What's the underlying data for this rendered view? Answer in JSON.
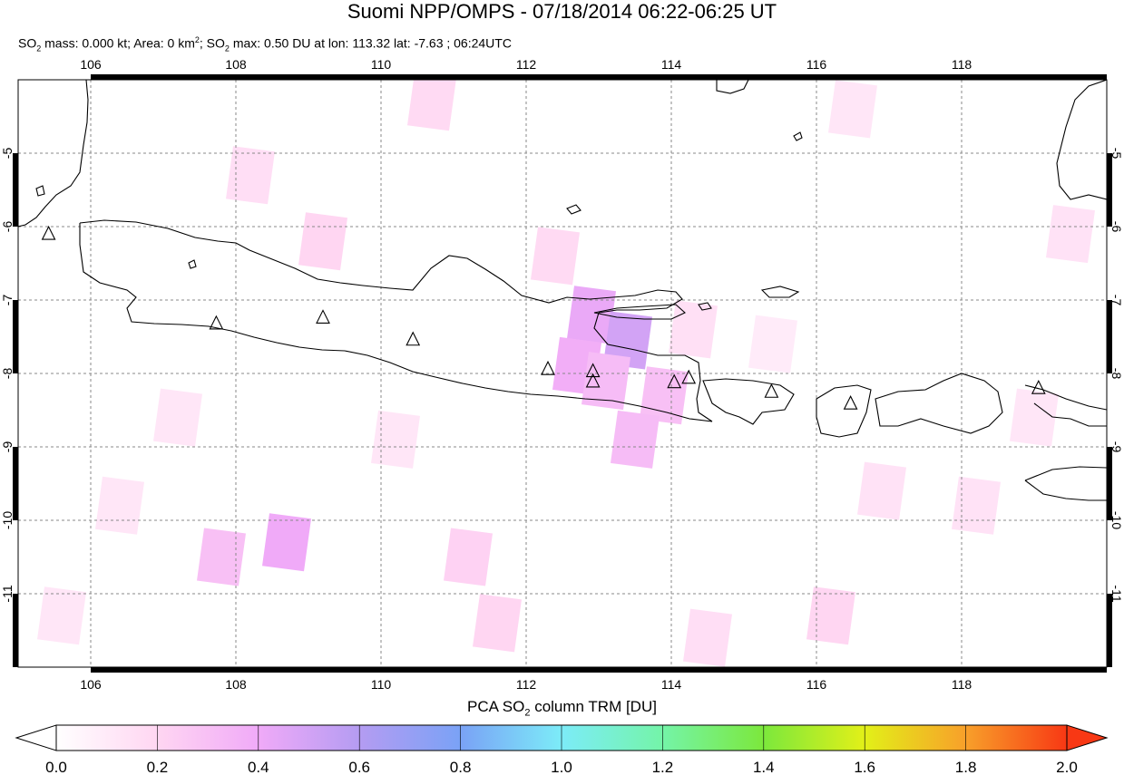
{
  "header": {
    "title": "Suomi NPP/OMPS - 07/18/2014 06:22-06:25 UT",
    "subtitle_parts": {
      "a": "SO",
      "a_sub": "2",
      "b": " mass: 0.000 kt; Area: 0 km",
      "b_sup": "2",
      "c": "; SO",
      "c_sub": "2",
      "d": " max: 0.50 DU at lon: 113.32 lat: -7.63 ; 06:24UTC"
    }
  },
  "colorbar": {
    "label_a": "PCA SO",
    "label_sub": "2",
    "label_b": " column TRM [DU]",
    "ticks": [
      "0.0",
      "0.2",
      "0.4",
      "0.6",
      "0.8",
      "1.0",
      "1.2",
      "1.4",
      "1.6",
      "1.8",
      "2.0"
    ],
    "colors": [
      "#ffffff",
      "#ffd6f2",
      "#f0aaf8",
      "#b49cf2",
      "#7aa2f6",
      "#7cecf8",
      "#74f4a8",
      "#7ce83c",
      "#e2f018",
      "#f8a02a",
      "#f83814"
    ]
  },
  "chart_data": {
    "type": "heatmap",
    "title": "Suomi NPP/OMPS - 07/18/2014 06:22-06:25 UT",
    "xlim": [
      105,
      120
    ],
    "ylim": [
      -12,
      -4
    ],
    "x_ticks": [
      "106",
      "108",
      "110",
      "112",
      "114",
      "116",
      "118"
    ],
    "y_ticks": [
      "-5",
      "-6",
      "-7",
      "-8",
      "-9",
      "-10",
      "-11"
    ],
    "x_tick_values": [
      106,
      108,
      110,
      112,
      114,
      116,
      118
    ],
    "y_tick_values": [
      -5,
      -6,
      -7,
      -8,
      -9,
      -10,
      -11
    ],
    "grid": true,
    "colorbar_range": [
      0.0,
      2.0
    ],
    "max_value": 0.5,
    "max_location": {
      "lon": 113.32,
      "lat": -7.63
    },
    "cells": [
      {
        "lon": 112.9,
        "lat": -7.2,
        "value": 0.42
      },
      {
        "lon": 113.4,
        "lat": -7.55,
        "value": 0.5
      },
      {
        "lon": 112.7,
        "lat": -7.9,
        "value": 0.38
      },
      {
        "lon": 113.1,
        "lat": -8.1,
        "value": 0.32
      },
      {
        "lon": 113.9,
        "lat": -8.3,
        "value": 0.3
      },
      {
        "lon": 113.5,
        "lat": -8.9,
        "value": 0.32
      },
      {
        "lon": 108.7,
        "lat": -10.3,
        "value": 0.4
      },
      {
        "lon": 107.8,
        "lat": -10.5,
        "value": 0.3
      },
      {
        "lon": 109.2,
        "lat": -6.2,
        "value": 0.2
      },
      {
        "lon": 108.2,
        "lat": -5.3,
        "value": 0.16
      },
      {
        "lon": 110.7,
        "lat": -4.3,
        "value": 0.18
      },
      {
        "lon": 112.4,
        "lat": -6.4,
        "value": 0.18
      },
      {
        "lon": 114.3,
        "lat": -7.4,
        "value": 0.15
      },
      {
        "lon": 116.2,
        "lat": -11.3,
        "value": 0.2
      },
      {
        "lon": 111.6,
        "lat": -11.4,
        "value": 0.2
      },
      {
        "lon": 116.9,
        "lat": -9.6,
        "value": 0.14
      },
      {
        "lon": 118.2,
        "lat": -9.8,
        "value": 0.14
      },
      {
        "lon": 119.5,
        "lat": -6.1,
        "value": 0.14
      },
      {
        "lon": 116.5,
        "lat": -4.4,
        "value": 0.12
      },
      {
        "lon": 106.4,
        "lat": -9.8,
        "value": 0.12
      },
      {
        "lon": 111.2,
        "lat": -10.5,
        "value": 0.22
      },
      {
        "lon": 114.5,
        "lat": -11.6,
        "value": 0.16
      },
      {
        "lon": 110.2,
        "lat": -8.9,
        "value": 0.12
      },
      {
        "lon": 107.2,
        "lat": -8.6,
        "value": 0.12
      },
      {
        "lon": 105.6,
        "lat": -11.3,
        "value": 0.12
      },
      {
        "lon": 115.4,
        "lat": -7.6,
        "value": 0.1
      },
      {
        "lon": 119.0,
        "lat": -8.6,
        "value": 0.12
      }
    ],
    "volcanoes": [
      {
        "lon": 105.42,
        "lat": -6.1
      },
      {
        "lon": 107.73,
        "lat": -7.32
      },
      {
        "lon": 109.2,
        "lat": -7.24
      },
      {
        "lon": 110.44,
        "lat": -7.54
      },
      {
        "lon": 112.3,
        "lat": -7.94
      },
      {
        "lon": 112.92,
        "lat": -7.97
      },
      {
        "lon": 112.92,
        "lat": -8.11
      },
      {
        "lon": 114.04,
        "lat": -8.12
      },
      {
        "lon": 114.24,
        "lat": -8.06
      },
      {
        "lon": 115.38,
        "lat": -8.25
      },
      {
        "lon": 116.47,
        "lat": -8.41
      },
      {
        "lon": 119.06,
        "lat": -8.2
      }
    ]
  }
}
